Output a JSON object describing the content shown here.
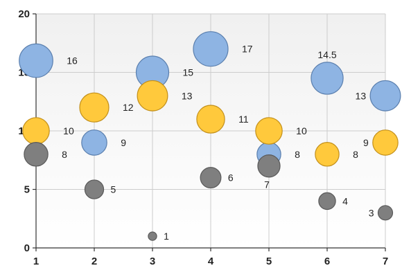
{
  "chart_data": {
    "type": "scatter",
    "subtype": "bubble",
    "title": "",
    "xlabel": "",
    "ylabel": "",
    "xlim": [
      1,
      7
    ],
    "ylim": [
      0,
      20
    ],
    "xticks": [
      "1",
      "2",
      "3",
      "4",
      "5",
      "6",
      "7"
    ],
    "yticks": [
      "0",
      "5",
      "10",
      "15",
      "20"
    ],
    "grid": true,
    "legend": "none",
    "series": [
      {
        "color": "#8eb4e3",
        "stroke": "#5a7fae",
        "points": [
          {
            "x": 1,
            "y": 16,
            "size": 16,
            "label": "16"
          },
          {
            "x": 2,
            "y": 9,
            "size": 9,
            "label": "9"
          },
          {
            "x": 3,
            "y": 15,
            "size": 15,
            "label": "15"
          },
          {
            "x": 4,
            "y": 17,
            "size": 17,
            "label": "17"
          },
          {
            "x": 5,
            "y": 8,
            "size": 8,
            "label": "8"
          },
          {
            "x": 6,
            "y": 14.5,
            "size": 14.5,
            "label": "14.5"
          },
          {
            "x": 7,
            "y": 13,
            "size": 13,
            "label": "13"
          }
        ]
      },
      {
        "color": "#ffc93c",
        "stroke": "#c28f1a",
        "points": [
          {
            "x": 1,
            "y": 10,
            "size": 10,
            "label": "10"
          },
          {
            "x": 2,
            "y": 12,
            "size": 12,
            "label": "12"
          },
          {
            "x": 3,
            "y": 13,
            "size": 13,
            "label": "13"
          },
          {
            "x": 4,
            "y": 11,
            "size": 11,
            "label": "11"
          },
          {
            "x": 5,
            "y": 10,
            "size": 10,
            "label": "10"
          },
          {
            "x": 6,
            "y": 8,
            "size": 8,
            "label": "8"
          },
          {
            "x": 7,
            "y": 9,
            "size": 9,
            "label": "9"
          }
        ]
      },
      {
        "color": "#7f7f7f",
        "stroke": "#595959",
        "points": [
          {
            "x": 1,
            "y": 8,
            "size": 8,
            "label": "8"
          },
          {
            "x": 2,
            "y": 5,
            "size": 5,
            "label": "5"
          },
          {
            "x": 3,
            "y": 1,
            "size": 1,
            "label": "1"
          },
          {
            "x": 4,
            "y": 6,
            "size": 6,
            "label": "6"
          },
          {
            "x": 5,
            "y": 7,
            "size": 7,
            "label": "7"
          },
          {
            "x": 6,
            "y": 4,
            "size": 4,
            "label": "4"
          },
          {
            "x": 7,
            "y": 3,
            "size": 3,
            "label": "3"
          }
        ]
      }
    ]
  }
}
